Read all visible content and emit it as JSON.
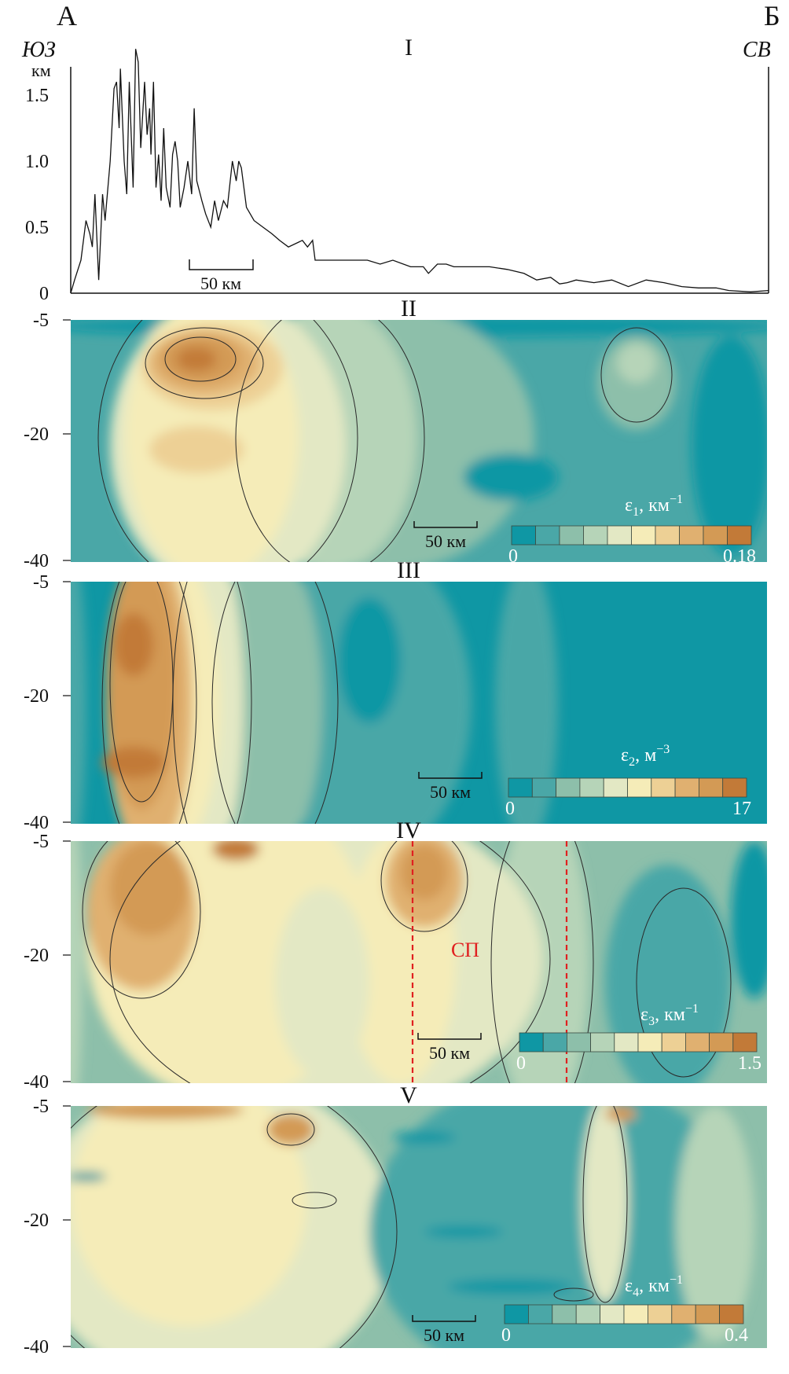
{
  "header": {
    "left_point": "А",
    "right_point": "Б",
    "left_dir": "ЮЗ",
    "right_dir": "СВ"
  },
  "colors": {
    "scale": [
      "#0f97a4",
      "#4aa7a7",
      "#8dbfaa",
      "#b6d4b8",
      "#e3e8c4",
      "#f5ecb8",
      "#edd095",
      "#e0b070",
      "#d39a55",
      "#c27a38"
    ],
    "marker": "#e02020"
  },
  "chart_data": [
    {
      "type": "line",
      "panel": "I",
      "title": "I",
      "ylabel": "км",
      "xlabel": "",
      "ylim": [
        0,
        1.9
      ],
      "yticks": [
        "0",
        "0.5",
        "1.0",
        "1.5"
      ],
      "scale_bar": "50 км",
      "x_km": [
        0,
        3,
        8,
        12,
        15,
        17,
        19,
        22,
        25,
        27,
        31,
        34,
        36,
        38,
        39,
        42,
        44,
        46,
        49,
        51,
        53,
        55,
        58,
        60,
        62,
        63,
        65,
        67,
        69,
        71,
        73,
        75,
        78,
        80,
        82,
        84,
        86,
        89,
        92,
        95,
        97,
        99,
        103,
        106,
        110,
        113,
        116,
        120,
        123,
        127,
        130,
        132,
        134,
        138,
        144,
        151,
        158,
        164,
        171,
        182,
        186,
        190,
        192,
        205,
        219,
        233,
        243,
        253,
        267,
        277,
        281,
        288,
        295,
        301,
        315,
        329,
        343,
        356,
        366,
        377,
        384,
        390,
        397,
        411,
        425,
        438,
        452,
        466,
        480,
        493,
        507,
        517,
        534,
        548
      ],
      "elevation_km": [
        0,
        0.1,
        0.25,
        0.55,
        0.45,
        0.35,
        0.75,
        0.1,
        0.75,
        0.55,
        1.0,
        1.55,
        1.6,
        1.25,
        1.7,
        1.0,
        0.75,
        1.6,
        0.8,
        1.85,
        1.75,
        1.1,
        1.6,
        1.2,
        1.4,
        1.05,
        1.6,
        0.8,
        1.05,
        0.7,
        1.25,
        0.8,
        0.65,
        1.05,
        1.15,
        1.0,
        0.65,
        0.8,
        1.0,
        0.75,
        1.4,
        0.85,
        0.7,
        0.6,
        0.5,
        0.7,
        0.55,
        0.7,
        0.65,
        1.0,
        0.85,
        1.0,
        0.95,
        0.65,
        0.55,
        0.5,
        0.45,
        0.4,
        0.35,
        0.4,
        0.35,
        0.4,
        0.25,
        0.25,
        0.25,
        0.25,
        0.22,
        0.25,
        0.2,
        0.2,
        0.15,
        0.22,
        0.22,
        0.2,
        0.2,
        0.2,
        0.18,
        0.15,
        0.1,
        0.12,
        0.07,
        0.08,
        0.1,
        0.08,
        0.1,
        0.05,
        0.1,
        0.08,
        0.05,
        0.04,
        0.04,
        0.02,
        0.01,
        0.02
      ]
    },
    {
      "type": "heatmap",
      "panel": "II",
      "title": "II",
      "yticks": [
        "-5",
        "-20",
        "-40"
      ],
      "ylim": [
        -40,
        -5
      ],
      "scale_bar": "50 км",
      "colorbar": {
        "symbol": "ε",
        "sub": "1",
        "unit": ", км",
        "sup": "−1",
        "min": "0",
        "max": "0.18"
      }
    },
    {
      "type": "heatmap",
      "panel": "III",
      "title": "III",
      "yticks": [
        "-5",
        "-20",
        "-40"
      ],
      "ylim": [
        -40,
        -5
      ],
      "scale_bar": "50 км",
      "colorbar": {
        "symbol": "ε",
        "sub": "2",
        "unit": ", м",
        "sup": "−3",
        "min": "0",
        "max": "17"
      }
    },
    {
      "type": "heatmap",
      "panel": "IV",
      "title": "IV",
      "yticks": [
        "-5",
        "-20",
        "-40"
      ],
      "ylim": [
        -40,
        -5
      ],
      "scale_bar": "50 км",
      "annotation": "СП",
      "colorbar": {
        "symbol": "ε",
        "sub": "3",
        "unit": ", км",
        "sup": "−1",
        "min": "0",
        "max": "1.5"
      }
    },
    {
      "type": "heatmap",
      "panel": "V",
      "title": "V",
      "yticks": [
        "-5",
        "-20",
        "-40"
      ],
      "ylim": [
        -40,
        -5
      ],
      "scale_bar": "50 км",
      "colorbar": {
        "symbol": "ε",
        "sub": "4",
        "unit": ", км",
        "sup": "−1",
        "min": "0",
        "max": "0.4"
      }
    }
  ]
}
